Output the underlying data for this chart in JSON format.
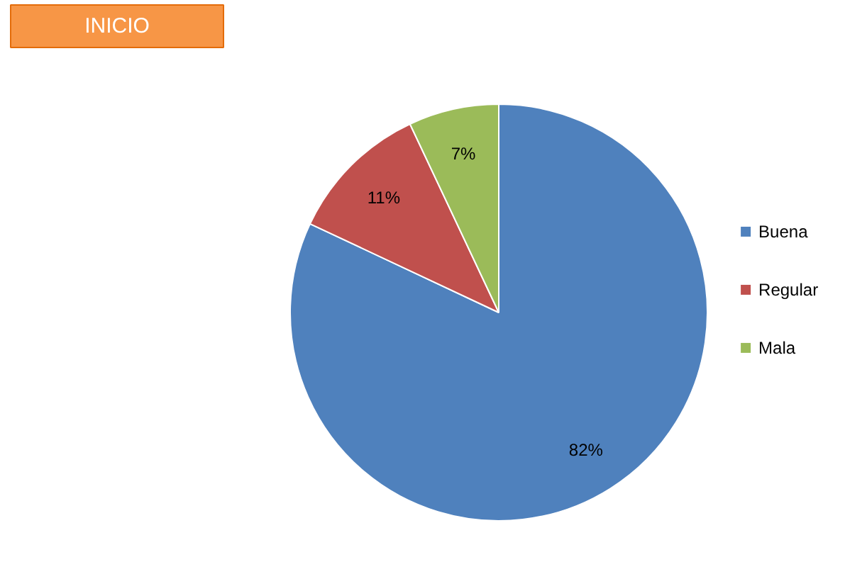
{
  "chart_data": {
    "type": "pie",
    "categories": [
      "Buena",
      "Regular",
      "Mala"
    ],
    "values": [
      82,
      11,
      7
    ],
    "colors": [
      "#4f81bd",
      "#c0504d",
      "#9bbb59"
    ],
    "value_labels": [
      "82%",
      "11%",
      "7%"
    ],
    "legend": "right",
    "annotations": [
      "INICIO"
    ]
  }
}
